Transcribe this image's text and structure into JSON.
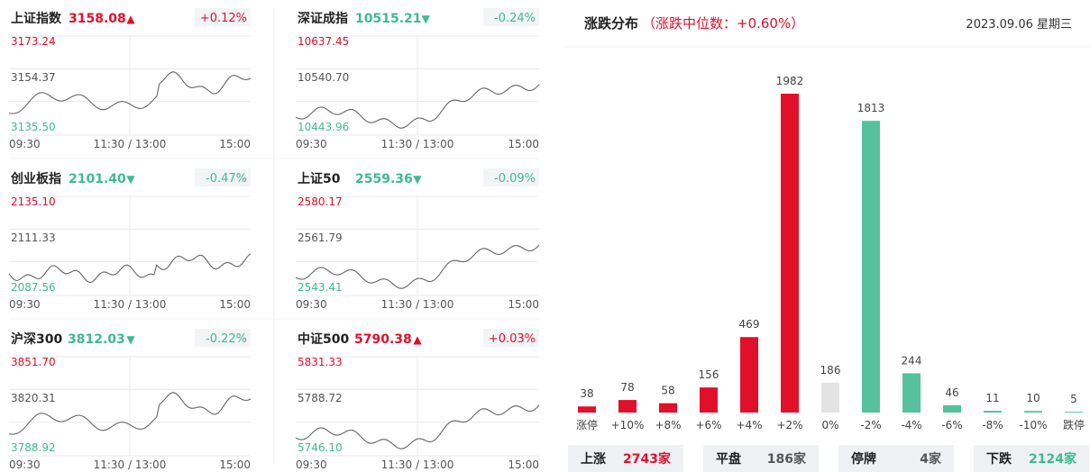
{
  "panels": [
    {
      "name": "上证指数",
      "price": "3158.08",
      "trend": "up",
      "change": "+0.12%",
      "y_high": "3173.24",
      "y_mid": "3154.37",
      "y_low": "3135.50",
      "x_start": "09:30",
      "x_mid": "11:30 / 13:00",
      "x_end": "15:00",
      "series_shape": "sh"
    },
    {
      "name": "深证成指",
      "price": "10515.21",
      "trend": "down",
      "change": "-0.24%",
      "y_high": "10637.45",
      "y_mid": "10540.70",
      "y_low": "10443.96",
      "x_start": "09:30",
      "x_mid": "11:30 / 13:00",
      "x_end": "15:00",
      "series_shape": "sz"
    },
    {
      "name": "创业板指",
      "price": "2101.40",
      "trend": "down",
      "change": "-0.47%",
      "y_high": "2135.10",
      "y_mid": "2111.33",
      "y_low": "2087.56",
      "x_start": "09:30",
      "x_mid": "11:30 / 13:00",
      "x_end": "15:00",
      "series_shape": "cy"
    },
    {
      "name": "上证50",
      "price": "2559.36",
      "trend": "down",
      "change": "-0.09%",
      "y_high": "2580.17",
      "y_mid": "2561.79",
      "y_low": "2543.41",
      "x_start": "09:30",
      "x_mid": "11:30 / 13:00",
      "x_end": "15:00",
      "series_shape": "sz"
    },
    {
      "name": "沪深300",
      "price": "3812.03",
      "trend": "down",
      "change": "-0.22%",
      "y_high": "3851.70",
      "y_mid": "3820.31",
      "y_low": "3788.92",
      "x_start": "09:30",
      "x_mid": "11:30 / 13:00",
      "x_end": "15:00",
      "series_shape": "sh"
    },
    {
      "name": "中证500",
      "price": "5790.38",
      "trend": "up",
      "change": "+0.03%",
      "y_high": "5831.33",
      "y_mid": "5788.72",
      "y_low": "5746.10",
      "x_start": "09:30",
      "x_mid": "11:30 / 13:00",
      "x_end": "15:00",
      "series_shape": "sz"
    }
  ],
  "distribution": {
    "title": "涨跌分布",
    "subtitle": "（涨跌中位数：+0.60%）",
    "date": "2023.09.06 星期三"
  },
  "chart_data": {
    "type": "bar",
    "categories": [
      "涨停",
      "+10%",
      "+8%",
      "+6%",
      "+4%",
      "+2%",
      "0%",
      "-2%",
      "-4%",
      "-6%",
      "-8%",
      "-10%",
      "跌停"
    ],
    "values": [
      38,
      78,
      58,
      156,
      469,
      1982,
      186,
      1813,
      244,
      46,
      11,
      10,
      5
    ],
    "colors": [
      "#e0102b",
      "#e0102b",
      "#e0102b",
      "#e0102b",
      "#e0102b",
      "#e0102b",
      "#e3e3e3",
      "#55c29d",
      "#55c29d",
      "#55c29d",
      "#55c29d",
      "#55c29d",
      "#55c29d"
    ]
  },
  "summary": [
    {
      "label": "上涨",
      "value": "2743家",
      "color": "red"
    },
    {
      "label": "平盘",
      "value": "186家",
      "color": "gray"
    },
    {
      "label": "停牌",
      "value": "4家",
      "color": "gray"
    },
    {
      "label": "下跌",
      "value": "2124家",
      "color": "green"
    }
  ],
  "colors": {
    "up": "#e0102b",
    "down": "#3dbb8f",
    "flat": "#e3e3e3",
    "grid": "#e9e9e9",
    "summary_bg": "#eef1f4"
  }
}
